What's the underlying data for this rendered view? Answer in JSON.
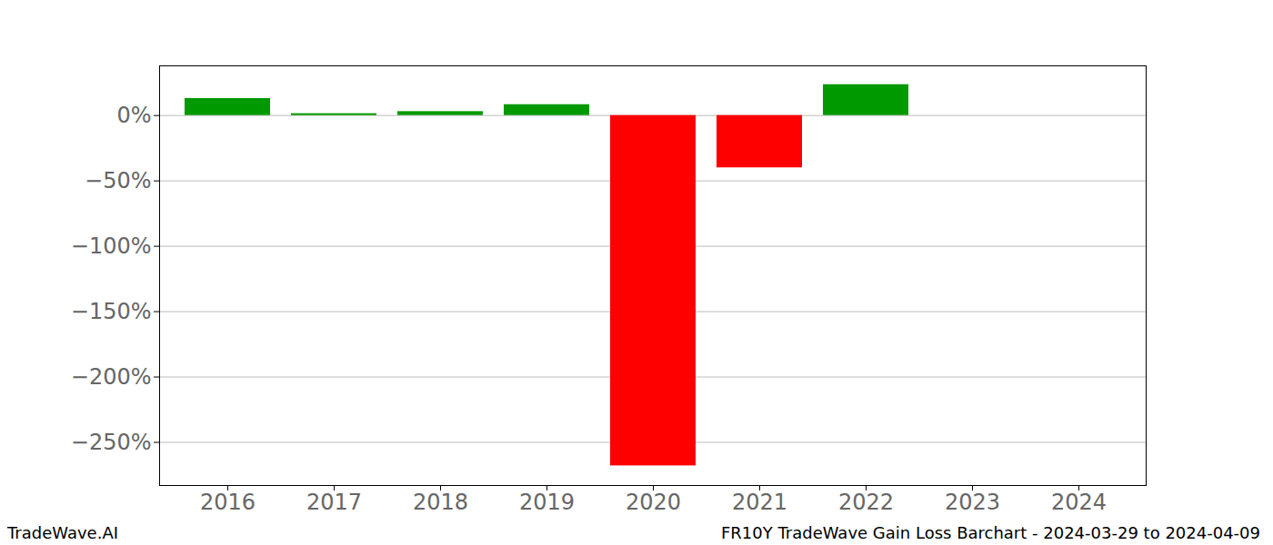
{
  "chart_data": {
    "type": "bar",
    "title": "FR10Y TradeWave Gain Loss Barchart - 2024-03-29 to 2024-04-09",
    "annotations": [
      "TradeWave.AI"
    ],
    "categories": [
      "2016",
      "2017",
      "2018",
      "2019",
      "2020",
      "2021",
      "2022",
      "2023",
      "2024"
    ],
    "values": [
      13,
      1.4,
      3,
      8.3,
      -268,
      -40,
      23.6,
      0,
      0
    ],
    "colors": [
      "#009900",
      "#009900",
      "#009900",
      "#009900",
      "#ff0000",
      "#ff0000",
      "#009900",
      "#009900",
      "#009900"
    ],
    "ylim": [
      -283,
      38
    ],
    "yticks": [
      {
        "value": 0,
        "label": "0%"
      },
      {
        "value": -50,
        "label": "−50%"
      },
      {
        "value": -100,
        "label": "−100%"
      },
      {
        "value": -150,
        "label": "−150%"
      },
      {
        "value": -200,
        "label": "−200%"
      },
      {
        "value": -250,
        "label": "−250%"
      }
    ],
    "grid": true
  }
}
